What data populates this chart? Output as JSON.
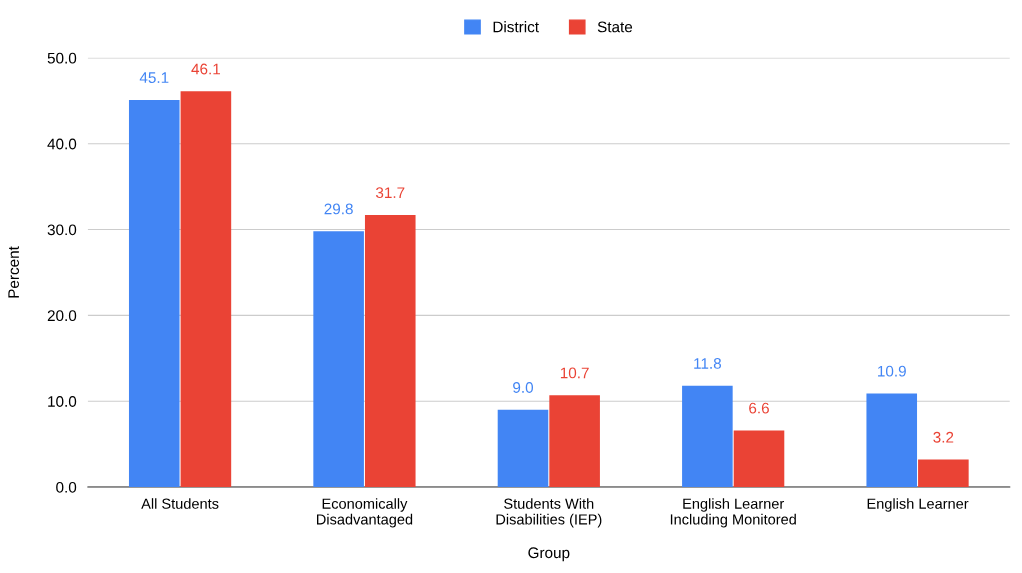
{
  "chart_data": {
    "type": "bar",
    "xlabel": "Group",
    "ylabel": "Percent",
    "categories": [
      "All Students",
      "Economically\nDisadvantaged",
      "Students With\nDisabilities (IEP)",
      "English Learner\nIncluding Monitored",
      "English Learner"
    ],
    "series": [
      {
        "name": "District",
        "color": "#4285f4",
        "values": [
          45.1,
          29.8,
          9.0,
          11.8,
          10.9
        ],
        "value_labels": [
          "45.1",
          "29.8",
          "9.0",
          "11.8",
          "10.9"
        ]
      },
      {
        "name": "State",
        "color": "#ea4335",
        "values": [
          46.1,
          31.7,
          10.7,
          6.6,
          3.2
        ],
        "value_labels": [
          "46.1",
          "31.7",
          "10.7",
          "6.6",
          "3.2"
        ]
      }
    ],
    "ylim": [
      0,
      50
    ],
    "yticks": [
      {
        "value": 0,
        "label": "0.0"
      },
      {
        "value": 10,
        "label": "10.0"
      },
      {
        "value": 20,
        "label": "20.0"
      },
      {
        "value": 30,
        "label": "30.0"
      },
      {
        "value": 40,
        "label": "40.0"
      },
      {
        "value": 50,
        "label": "50.0"
      }
    ],
    "grid": "y",
    "legend": "top"
  }
}
